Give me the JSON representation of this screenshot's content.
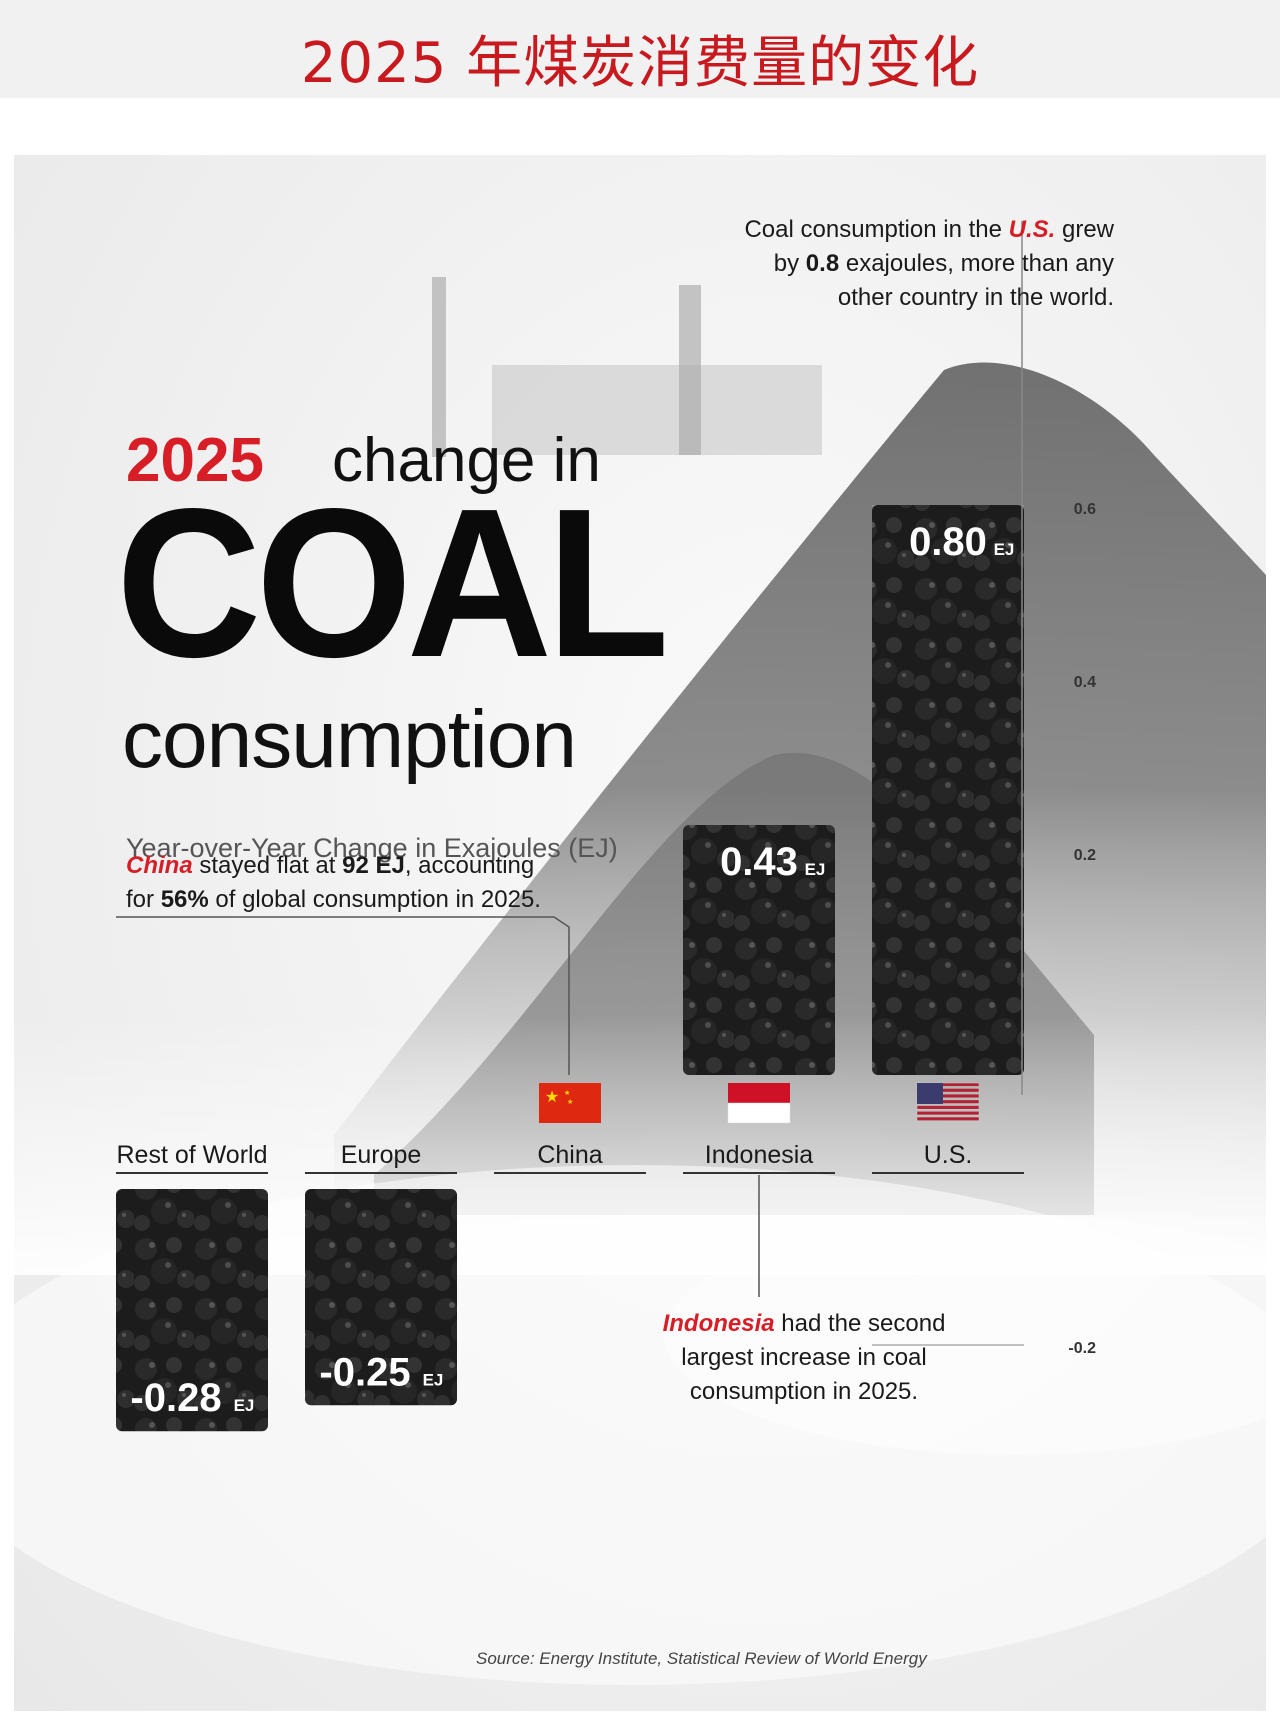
{
  "banner": {
    "title": "2025 年煤炭消费量的变化"
  },
  "headline": {
    "year": "2025",
    "change_in": "change in",
    "coal": "COAL",
    "consumption": "consumption",
    "subtitle": "Year-over-Year Change in Exajoules (EJ)"
  },
  "notes": {
    "us": {
      "t1": "Coal consumption in the ",
      "em": "U.S.",
      "t2": " grew",
      "t3": "by ",
      "b1": "0.8",
      "t4": " exajoules, more than any",
      "t5": "other country in the world."
    },
    "china": {
      "em": "China",
      "t1": " stayed flat at ",
      "b1": "92 EJ",
      "t2": ", accounting",
      "t3": "for ",
      "b2": "56%",
      "t4": " of global consumption in 2025."
    },
    "indonesia": {
      "em": "Indonesia",
      "t1": " had the second",
      "t2": "largest increase in coal",
      "t3": "consumption in 2025."
    }
  },
  "source": "Source: Energy Institute, Statistical Review of World Energy",
  "unit_label": "EJ",
  "colors": {
    "accent": "#d71e27",
    "coal": "#1b1b1b",
    "text": "#1a1a1a"
  },
  "chart_data": {
    "type": "bar",
    "categories": [
      "Rest of World",
      "Europe",
      "China",
      "Indonesia",
      "U.S."
    ],
    "values": [
      -0.28,
      -0.25,
      0,
      0.43,
      0.8
    ],
    "value_labels": [
      "-0.28",
      "-0.25",
      "",
      "0.43",
      "0.80"
    ],
    "flags": [
      "",
      "",
      "china-flag",
      "indonesia-flag",
      "us-flag"
    ],
    "yticks": [
      0.6,
      0.4,
      0.2,
      -0.2
    ],
    "ytick_labels": [
      "0.6",
      "0.4",
      "0.2",
      "-0.2"
    ],
    "ylim": [
      -0.3,
      0.8
    ],
    "ylabel": "Year-over-Year Change in Exajoules (EJ)",
    "xlabel": ""
  }
}
